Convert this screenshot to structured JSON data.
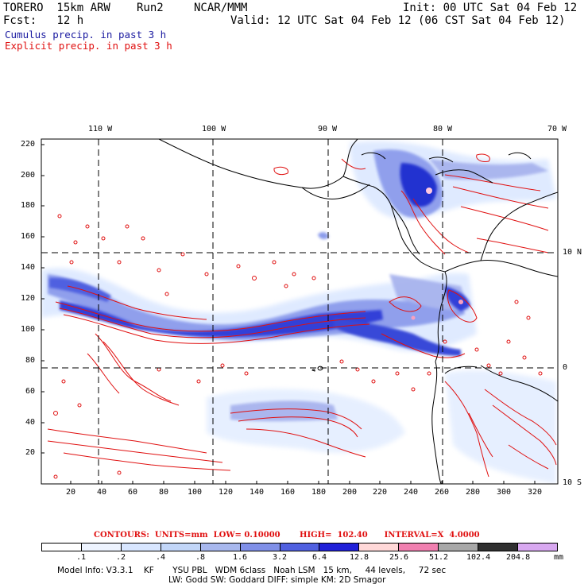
{
  "header": {
    "model": "TORERO  15km ARW",
    "run": "Run2",
    "org": "NCAR/MMM",
    "init": "Init: 00 UTC Sat 04 Feb 12",
    "fcst": "Fcst:   12 h",
    "valid": "Valid: 12 UTC Sat 04 Feb 12 (06 CST Sat 04 Feb 12)",
    "cumulus": "Cumulus precip. in past 3 h",
    "explicit": "Explicit precip. in past 3 h"
  },
  "colors": {
    "cumulus_text": "#1a1aa0",
    "explicit_text": "#e01010",
    "contour": "#e01010",
    "coast": "#000000"
  },
  "axes": {
    "lon_labels": [
      "110 W",
      "100 W",
      "90 W",
      "80 W",
      "70 W"
    ],
    "lat_labels": [
      "10 N",
      "0",
      "10 S"
    ],
    "y_ticks": [
      "220",
      "200",
      "180",
      "160",
      "140",
      "120",
      "100",
      "80",
      "60",
      "40",
      "20"
    ],
    "x_ticks": [
      "20",
      "40",
      "60",
      "80",
      "100",
      "120",
      "140",
      "160",
      "180",
      "200",
      "220",
      "240",
      "260",
      "280",
      "300",
      "320"
    ]
  },
  "contours": {
    "text": "CONTOURS:  UNITS=mm  LOW= 0.10000       HIGH=  102.40      INTERVAL=X  4.0000"
  },
  "colorbar": {
    "unit": "mm",
    "labels": [
      ".1",
      ".2",
      ".4",
      ".8",
      "1.6",
      "3.2",
      "6.4",
      "12.8",
      "25.6",
      "51.2",
      "102.4",
      "204.8"
    ],
    "colors": [
      "#ffffff",
      "#eef4ff",
      "#d8e6ff",
      "#c2d6f8",
      "#a8b8ee",
      "#8090e8",
      "#5060e0",
      "#2020d8",
      "#ffd8d8",
      "#f080b0",
      "#a8a8a8",
      "#303030",
      "#d8a8f0"
    ]
  },
  "footer": {
    "line1": "Model Info: V3.3.1    KF       YSU PBL   WDM 6class   Noah LSM   15 km,     44 levels,     72 sec",
    "line2": "LW: Godd SW: Goddard DIFF: simple KM: 2D Smagor"
  }
}
